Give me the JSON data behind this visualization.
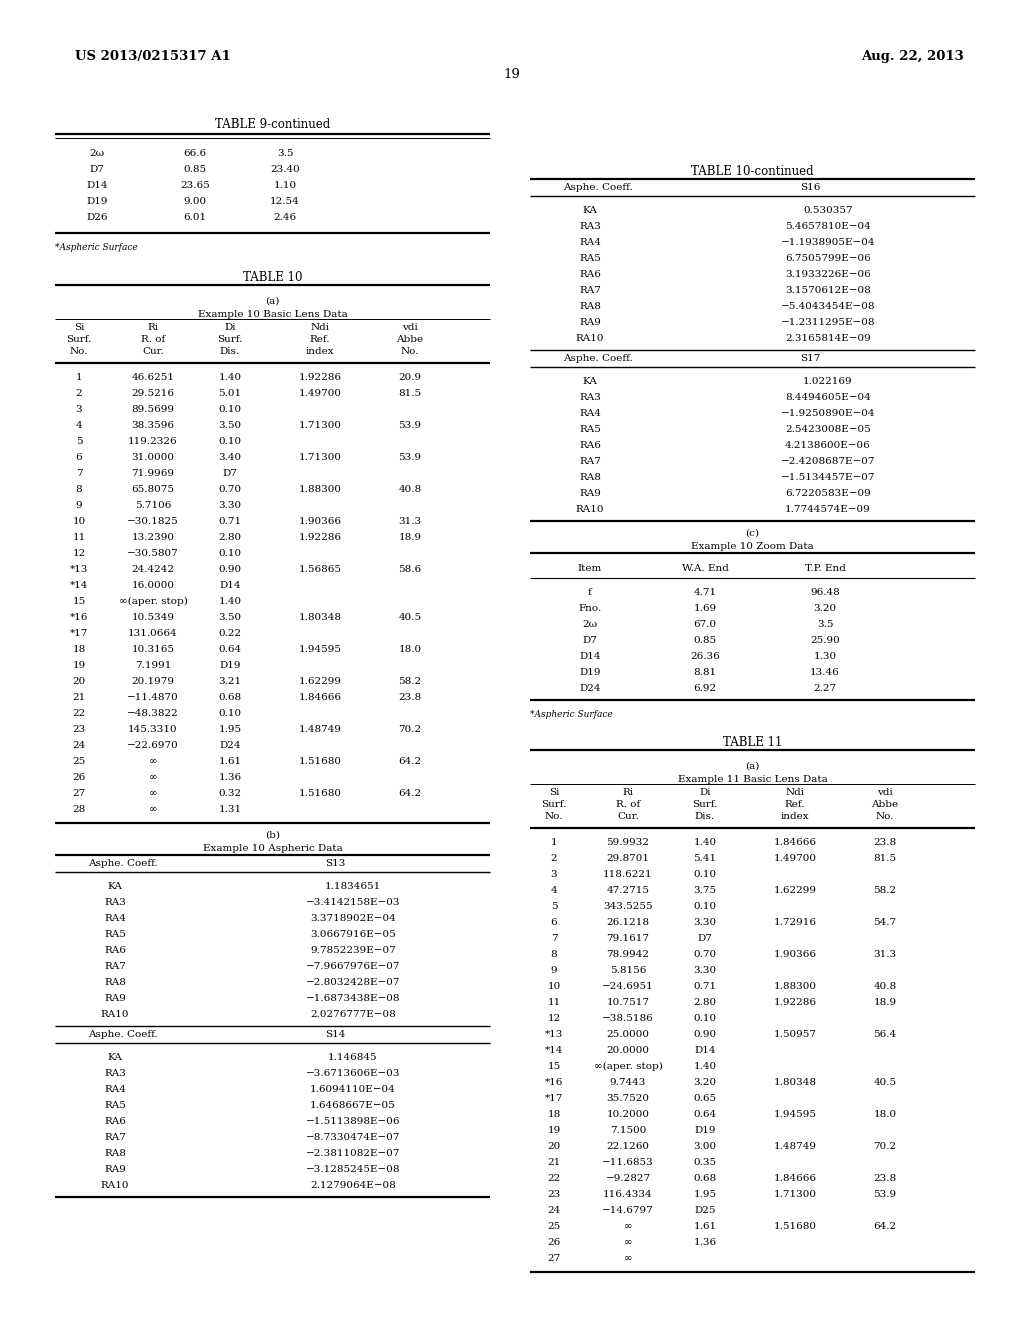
{
  "bg_color": "#ffffff",
  "page_width": 10.24,
  "page_height": 13.2,
  "header_left": "US 2013/0215317 A1",
  "header_right": "Aug. 22, 2013",
  "page_number": "19",
  "table9_continued": {
    "title": "TABLE 9-continued",
    "rows": [
      [
        "2ω",
        "66.6",
        "3.5"
      ],
      [
        "D7",
        "0.85",
        "23.40"
      ],
      [
        "D14",
        "23.65",
        "1.10"
      ],
      [
        "D19",
        "9.00",
        "12.54"
      ],
      [
        "D26",
        "6.01",
        "2.46"
      ]
    ],
    "footnote": "*Aspheric Surface"
  },
  "table10": {
    "title": "TABLE 10",
    "subtitle_a": "(a)",
    "subtitle_a2": "Example 10 Basic Lens Data",
    "col_headers": [
      "Si\nSurf.\nNo.",
      "Ri\nR. of\nCur.",
      "Di\nSurf.\nDis.",
      "Ndi\nRef.\nindex",
      "vdi\nAbbe\nNo."
    ],
    "rows": [
      [
        "1",
        "46.6251",
        "1.40",
        "1.92286",
        "20.9"
      ],
      [
        "2",
        "29.5216",
        "5.01",
        "1.49700",
        "81.5"
      ],
      [
        "3",
        "89.5699",
        "0.10",
        "",
        ""
      ],
      [
        "4",
        "38.3596",
        "3.50",
        "1.71300",
        "53.9"
      ],
      [
        "5",
        "119.2326",
        "0.10",
        "",
        ""
      ],
      [
        "6",
        "31.0000",
        "3.40",
        "1.71300",
        "53.9"
      ],
      [
        "7",
        "71.9969",
        "D7",
        "",
        ""
      ],
      [
        "8",
        "65.8075",
        "0.70",
        "1.88300",
        "40.8"
      ],
      [
        "9",
        "5.7106",
        "3.30",
        "",
        ""
      ],
      [
        "10",
        "−30.1825",
        "0.71",
        "1.90366",
        "31.3"
      ],
      [
        "11",
        "13.2390",
        "2.80",
        "1.92286",
        "18.9"
      ],
      [
        "12",
        "−30.5807",
        "0.10",
        "",
        ""
      ],
      [
        "*13",
        "24.4242",
        "0.90",
        "1.56865",
        "58.6"
      ],
      [
        "*14",
        "16.0000",
        "D14",
        "",
        ""
      ],
      [
        "15",
        "∞(aper. stop)",
        "1.40",
        "",
        ""
      ],
      [
        "*16",
        "10.5349",
        "3.50",
        "1.80348",
        "40.5"
      ],
      [
        "*17",
        "131.0664",
        "0.22",
        "",
        ""
      ],
      [
        "18",
        "10.3165",
        "0.64",
        "1.94595",
        "18.0"
      ],
      [
        "19",
        "7.1991",
        "D19",
        "",
        ""
      ],
      [
        "20",
        "20.1979",
        "3.21",
        "1.62299",
        "58.2"
      ],
      [
        "21",
        "−11.4870",
        "0.68",
        "1.84666",
        "23.8"
      ],
      [
        "22",
        "−48.3822",
        "0.10",
        "",
        ""
      ],
      [
        "23",
        "145.3310",
        "1.95",
        "1.48749",
        "70.2"
      ],
      [
        "24",
        "−22.6970",
        "D24",
        "",
        ""
      ],
      [
        "25",
        "∞",
        "1.61",
        "1.51680",
        "64.2"
      ],
      [
        "26",
        "∞",
        "1.36",
        "",
        ""
      ],
      [
        "27",
        "∞",
        "0.32",
        "1.51680",
        "64.2"
      ],
      [
        "28",
        "∞",
        "1.31",
        "",
        ""
      ]
    ],
    "subtitle_b": "(b)",
    "subtitle_b2": "Example 10 Aspheric Data",
    "asphe_s13": {
      "header_label": "Asphe. Coeff.",
      "header_col": "S13",
      "rows": [
        [
          "KA",
          "1.1834651"
        ],
        [
          "RA3",
          "−3.4142158E−03"
        ],
        [
          "RA4",
          "3.3718902E−04"
        ],
        [
          "RA5",
          "3.0667916E−05"
        ],
        [
          "RA6",
          "9.7852239E−07"
        ],
        [
          "RA7",
          "−7.9667976E−07"
        ],
        [
          "RA8",
          "−2.8032428E−07"
        ],
        [
          "RA9",
          "−1.6873438E−08"
        ],
        [
          "RA10",
          "2.0276777E−08"
        ]
      ]
    },
    "asphe_s14": {
      "header_label": "Asphe. Coeff.",
      "header_col": "S14",
      "rows": [
        [
          "KA",
          "1.146845"
        ],
        [
          "RA3",
          "−3.6713606E−03"
        ],
        [
          "RA4",
          "1.6094110E−04"
        ],
        [
          "RA5",
          "1.6468667E−05"
        ],
        [
          "RA6",
          "−1.5113898E−06"
        ],
        [
          "RA7",
          "−8.7330474E−07"
        ],
        [
          "RA8",
          "−2.3811082E−07"
        ],
        [
          "RA9",
          "−3.1285245E−08"
        ],
        [
          "RA10",
          "2.1279064E−08"
        ]
      ]
    }
  },
  "table10_right": {
    "title": "TABLE 10-continued",
    "asphe_s16": {
      "header_label": "Asphe. Coeff.",
      "header_col": "S16",
      "rows": [
        [
          "KA",
          "0.530357"
        ],
        [
          "RA3",
          "5.4657810E−04"
        ],
        [
          "RA4",
          "−1.1938905E−04"
        ],
        [
          "RA5",
          "6.7505799E−06"
        ],
        [
          "RA6",
          "3.1933226E−06"
        ],
        [
          "RA7",
          "3.1570612E−08"
        ],
        [
          "RA8",
          "−5.4043454E−08"
        ],
        [
          "RA9",
          "−1.2311295E−08"
        ],
        [
          "RA10",
          "2.3165814E−09"
        ]
      ]
    },
    "asphe_s17": {
      "header_label": "Asphe. Coeff.",
      "header_col": "S17",
      "rows": [
        [
          "KA",
          "1.022169"
        ],
        [
          "RA3",
          "8.4494605E−04"
        ],
        [
          "RA4",
          "−1.9250890E−04"
        ],
        [
          "RA5",
          "2.5423008E−05"
        ],
        [
          "RA6",
          "4.2138600E−06"
        ],
        [
          "RA7",
          "−2.4208687E−07"
        ],
        [
          "RA8",
          "−1.5134457E−07"
        ],
        [
          "RA9",
          "6.7220583E−09"
        ],
        [
          "RA10",
          "1.7744574E−09"
        ]
      ]
    },
    "subtitle_c": "(c)",
    "subtitle_c2": "Example 10 Zoom Data",
    "zoom_col_headers": [
      "Item",
      "W.A. End",
      "T.P. End"
    ],
    "zoom_rows": [
      [
        "f",
        "4.71",
        "96.48"
      ],
      [
        "Fno.",
        "1.69",
        "3.20"
      ],
      [
        "2ω",
        "67.0",
        "3.5"
      ],
      [
        "D7",
        "0.85",
        "25.90"
      ],
      [
        "D14",
        "26.36",
        "1.30"
      ],
      [
        "D19",
        "8.81",
        "13.46"
      ],
      [
        "D24",
        "6.92",
        "2.27"
      ]
    ],
    "footnote": "*Aspheric Surface"
  },
  "table11": {
    "title": "TABLE 11",
    "subtitle_a": "(a)",
    "subtitle_a2": "Example 11 Basic Lens Data",
    "col_headers": [
      "Si\nSurf.\nNo.",
      "Ri\nR. of\nCur.",
      "Di\nSurf.\nDis.",
      "Ndi\nRef.\nindex",
      "vdi\nAbbe\nNo."
    ],
    "rows": [
      [
        "1",
        "59.9932",
        "1.40",
        "1.84666",
        "23.8"
      ],
      [
        "2",
        "29.8701",
        "5.41",
        "1.49700",
        "81.5"
      ],
      [
        "3",
        "118.6221",
        "0.10",
        "",
        ""
      ],
      [
        "4",
        "47.2715",
        "3.75",
        "1.62299",
        "58.2"
      ],
      [
        "5",
        "343.5255",
        "0.10",
        "",
        ""
      ],
      [
        "6",
        "26.1218",
        "3.30",
        "1.72916",
        "54.7"
      ],
      [
        "7",
        "79.1617",
        "D7",
        "",
        ""
      ],
      [
        "8",
        "78.9942",
        "0.70",
        "1.90366",
        "31.3"
      ],
      [
        "9",
        "5.8156",
        "3.30",
        "",
        ""
      ],
      [
        "10",
        "−24.6951",
        "0.71",
        "1.88300",
        "40.8"
      ],
      [
        "11",
        "10.7517",
        "2.80",
        "1.92286",
        "18.9"
      ],
      [
        "12",
        "−38.5186",
        "0.10",
        "",
        ""
      ],
      [
        "*13",
        "25.0000",
        "0.90",
        "1.50957",
        "56.4"
      ],
      [
        "*14",
        "20.0000",
        "D14",
        "",
        ""
      ],
      [
        "15",
        "∞(aper. stop)",
        "1.40",
        "",
        ""
      ],
      [
        "*16",
        "9.7443",
        "3.20",
        "1.80348",
        "40.5"
      ],
      [
        "*17",
        "35.7520",
        "0.65",
        "",
        ""
      ],
      [
        "18",
        "10.2000",
        "0.64",
        "1.94595",
        "18.0"
      ],
      [
        "19",
        "7.1500",
        "D19",
        "",
        ""
      ],
      [
        "20",
        "22.1260",
        "3.00",
        "1.48749",
        "70.2"
      ],
      [
        "21",
        "−11.6853",
        "0.35",
        "",
        ""
      ],
      [
        "22",
        "−9.2827",
        "0.68",
        "1.84666",
        "23.8"
      ],
      [
        "23",
        "116.4334",
        "1.95",
        "1.71300",
        "53.9"
      ],
      [
        "24",
        "−14.6797",
        "D25",
        "",
        ""
      ],
      [
        "25",
        "∞",
        "1.61",
        "1.51680",
        "64.2"
      ],
      [
        "26",
        "∞",
        "1.36",
        "",
        ""
      ],
      [
        "27",
        "∞",
        "",
        "",
        ""
      ]
    ]
  }
}
